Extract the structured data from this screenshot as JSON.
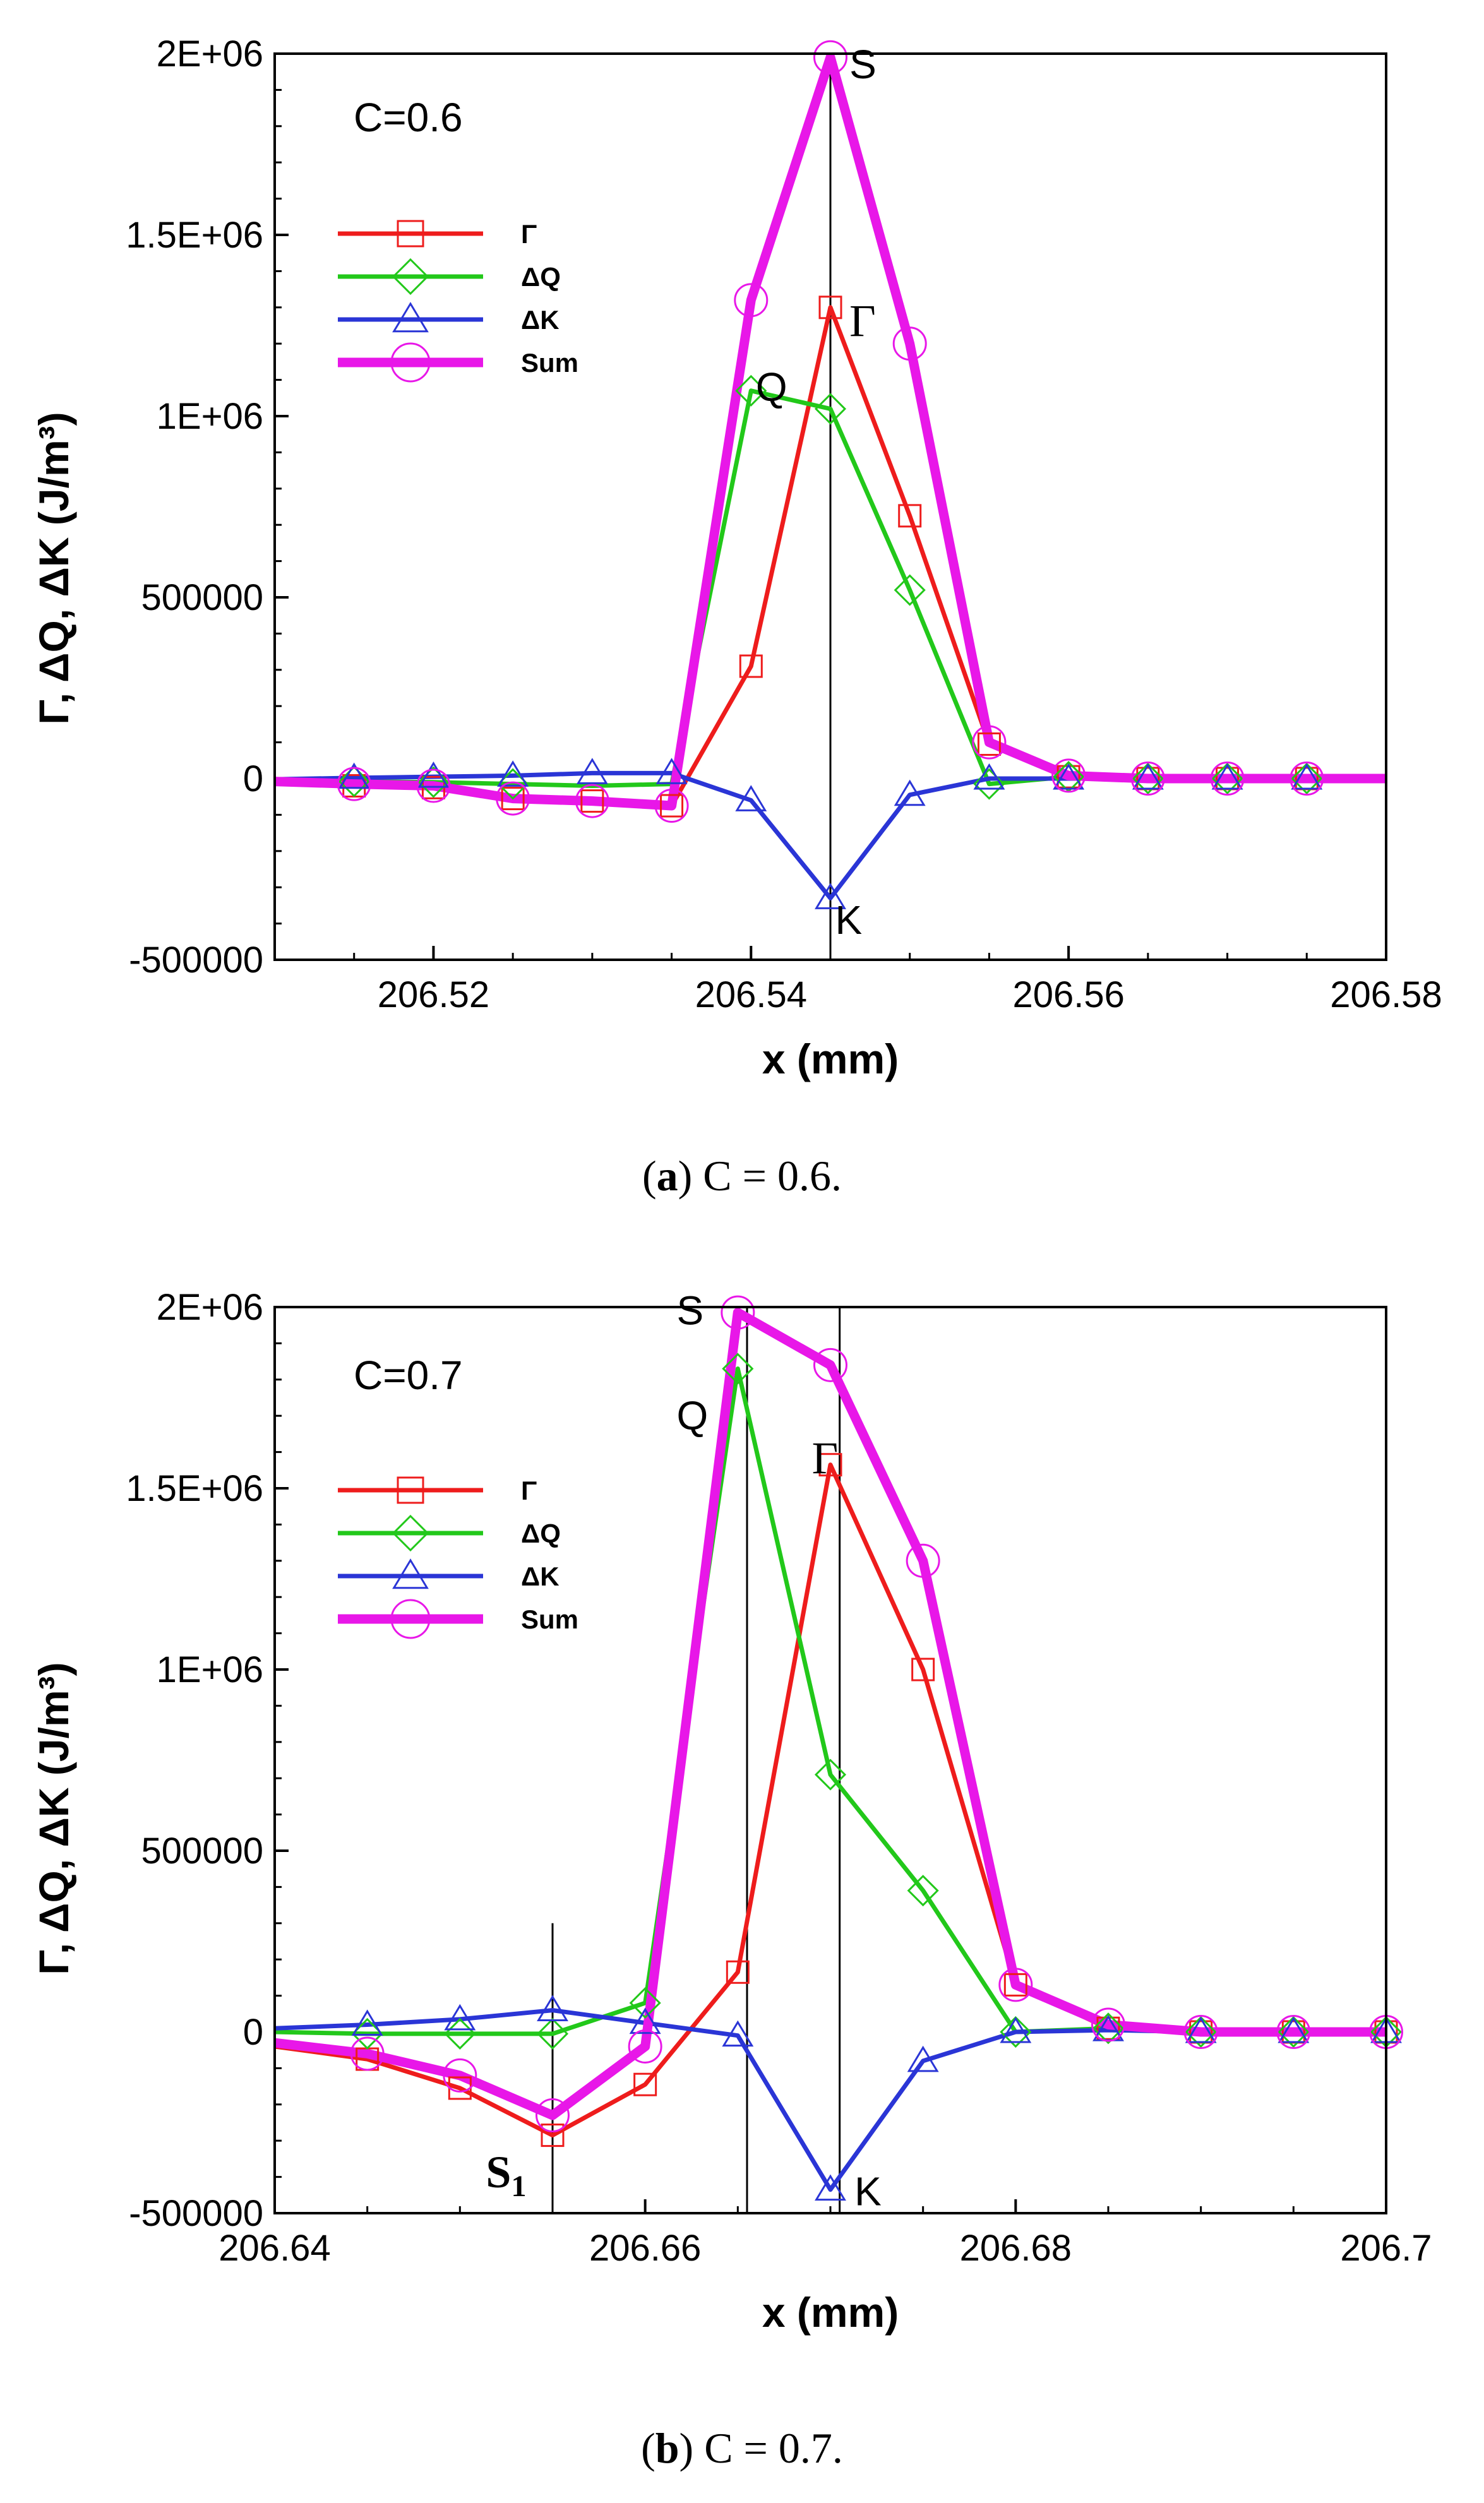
{
  "chart_data": [
    {
      "id": "a",
      "type": "line",
      "annotation": "C=0.6",
      "caption_letter": "a",
      "caption_text": "C = 0.6.",
      "xlabel": "x (mm)",
      "ylabel": "Γ, ΔQ, ΔK (J/m³)",
      "xlim": [
        206.51,
        206.58
      ],
      "ylim": [
        -500000,
        2000000
      ],
      "xticks": [
        206.52,
        206.54,
        206.56,
        206.58
      ],
      "xtick_labels": [
        "206.52",
        "206.54",
        "206.56",
        "206.58"
      ],
      "yticks": [
        -500000,
        0,
        500000,
        1000000,
        1500000,
        2000000
      ],
      "ytick_labels": [
        "-500000",
        "0",
        "500000",
        "1E+06",
        "1.5E+06",
        "2E+06"
      ],
      "vlines": [
        {
          "x": 206.545,
          "y_from": -500000,
          "y_to": 2000000
        }
      ],
      "labels": [
        {
          "text": "S",
          "x": 206.5462,
          "y": 1970000,
          "font": "sans"
        },
        {
          "text": "Γ",
          "x": 206.5462,
          "y": 1260000,
          "font": "serif"
        },
        {
          "text": "Q",
          "x": 206.5403,
          "y": 1080000,
          "font": "sans"
        },
        {
          "text": "K",
          "x": 206.5453,
          "y": -390000,
          "font": "sans"
        }
      ],
      "legend": [
        {
          "name": "Γ",
          "key": "gamma"
        },
        {
          "name": "ΔQ",
          "key": "dQ"
        },
        {
          "name": "ΔK",
          "key": "dK"
        },
        {
          "name": "Sum",
          "key": "sum"
        }
      ],
      "x": [
        206.51,
        206.515,
        206.52,
        206.525,
        206.53,
        206.535,
        206.54,
        206.545,
        206.55,
        206.555,
        206.56,
        206.565,
        206.57,
        206.575,
        206.58
      ],
      "series": [
        {
          "name": "Γ",
          "key": "gamma",
          "color": "#ee1c1c",
          "marker": "square",
          "width": 7,
          "values": [
            -10000,
            -20000,
            -25000,
            -55000,
            -62000,
            -75000,
            310000,
            1300000,
            725000,
            95000,
            5000,
            0,
            0,
            0,
            0
          ],
          "marker_x": [
            206.515,
            206.52,
            206.525,
            206.53,
            206.535,
            206.54,
            206.545,
            206.55,
            206.555,
            206.56,
            206.565,
            206.57,
            206.575
          ]
        },
        {
          "name": "ΔQ",
          "key": "dQ",
          "color": "#22c81a",
          "marker": "diamond",
          "width": 7,
          "values": [
            -5000,
            -8000,
            -10000,
            -15000,
            -20000,
            -15000,
            1070000,
            1020000,
            520000,
            -15000,
            5000,
            0,
            0,
            0,
            0
          ],
          "marker_x": [
            206.515,
            206.52,
            206.525,
            206.54,
            206.545,
            206.55,
            206.555,
            206.56,
            206.565,
            206.57,
            206.575
          ]
        },
        {
          "name": "ΔK",
          "key": "dK",
          "color": "#2a35d6",
          "marker": "triangle",
          "width": 7,
          "values": [
            -2000,
            2000,
            5000,
            8000,
            15000,
            15000,
            -60000,
            -330000,
            -45000,
            0,
            0,
            0,
            0,
            0,
            0
          ],
          "marker_x": [
            206.515,
            206.52,
            206.525,
            206.53,
            206.535,
            206.54,
            206.545,
            206.55,
            206.555,
            206.56,
            206.565,
            206.57,
            206.575
          ]
        },
        {
          "name": "Sum",
          "key": "sum",
          "color": "#e817e8",
          "marker": "circle",
          "width": 15,
          "values": [
            -8000,
            -15000,
            -20000,
            -55000,
            -62000,
            -75000,
            1320000,
            1990000,
            1200000,
            100000,
            8000,
            0,
            0,
            0,
            0
          ],
          "marker_x": [
            206.515,
            206.52,
            206.525,
            206.53,
            206.535,
            206.54,
            206.545,
            206.55,
            206.555,
            206.56,
            206.565,
            206.57,
            206.575
          ]
        }
      ]
    },
    {
      "id": "b",
      "type": "line",
      "annotation": "C=0.7",
      "caption_letter": "b",
      "caption_text": "C = 0.7.",
      "xlabel": "x (mm)",
      "ylabel": "Γ, ΔQ, ΔK (J/m³)",
      "xlim": [
        206.64,
        206.7
      ],
      "ylim": [
        -500000,
        2000000
      ],
      "xticks": [
        206.64,
        206.66,
        206.68,
        206.7
      ],
      "xtick_labels": [
        "206.64",
        "206.66",
        "206.68",
        "206.7"
      ],
      "yticks": [
        -500000,
        0,
        500000,
        1000000,
        1500000,
        2000000
      ],
      "ytick_labels": [
        "-500000",
        "0",
        "500000",
        "1E+06",
        "1.5E+06",
        "2E+06"
      ],
      "vlines": [
        {
          "x": 206.655,
          "y_from": -500000,
          "y_to": 300000
        },
        {
          "x": 206.6655,
          "y_from": -500000,
          "y_to": 2000000
        },
        {
          "x": 206.6705,
          "y_from": -500000,
          "y_to": 2000000
        }
      ],
      "labels": [
        {
          "text": "S",
          "x": 206.6617,
          "y": 1990000,
          "font": "sans"
        },
        {
          "text": "Q",
          "x": 206.6617,
          "y": 1700000,
          "font": "sans"
        },
        {
          "text": "Γ",
          "x": 206.669,
          "y": 1580000,
          "font": "serif"
        },
        {
          "text": "K",
          "x": 206.6713,
          "y": -440000,
          "font": "sans"
        },
        {
          "text": "S",
          "sub": "1",
          "x": 206.6514,
          "y": -390000,
          "font": "serif"
        }
      ],
      "legend": [
        {
          "name": "Γ",
          "key": "gamma"
        },
        {
          "name": "ΔQ",
          "key": "dQ"
        },
        {
          "name": "ΔK",
          "key": "dK"
        },
        {
          "name": "Sum",
          "key": "sum"
        }
      ],
      "x": [
        206.64,
        206.645,
        206.65,
        206.655,
        206.66,
        206.665,
        206.67,
        206.675,
        206.68,
        206.685,
        206.69,
        206.695,
        206.7
      ],
      "series": [
        {
          "name": "Γ",
          "key": "gamma",
          "color": "#ee1c1c",
          "marker": "square",
          "width": 7,
          "values": [
            -40000,
            -75000,
            -155000,
            -285000,
            -145000,
            165000,
            1565000,
            1000000,
            130000,
            10000,
            0,
            0,
            0
          ],
          "marker_x": [
            206.645,
            206.65,
            206.655,
            206.66,
            206.665,
            206.67,
            206.675,
            206.68,
            206.685,
            206.69,
            206.695,
            206.7
          ]
        },
        {
          "name": "ΔQ",
          "key": "dQ",
          "color": "#22c81a",
          "marker": "diamond",
          "width": 7,
          "values": [
            0,
            -5000,
            -5000,
            -5000,
            80000,
            1830000,
            710000,
            390000,
            0,
            10000,
            0,
            0,
            0
          ],
          "marker_x": [
            206.645,
            206.65,
            206.655,
            206.66,
            206.665,
            206.67,
            206.675,
            206.68,
            206.685,
            206.69,
            206.695,
            206.7
          ]
        },
        {
          "name": "ΔK",
          "key": "dK",
          "color": "#2a35d6",
          "marker": "triangle",
          "width": 7,
          "values": [
            10000,
            20000,
            35000,
            60000,
            25000,
            -10000,
            -435000,
            -80000,
            0,
            5000,
            0,
            0,
            0
          ],
          "marker_x": [
            206.645,
            206.65,
            206.655,
            206.66,
            206.665,
            206.67,
            206.675,
            206.68,
            206.685,
            206.69,
            206.695,
            206.7
          ]
        },
        {
          "name": "Sum",
          "key": "sum",
          "color": "#e817e8",
          "marker": "circle",
          "width": 15,
          "values": [
            -30000,
            -60000,
            -120000,
            -230000,
            -40000,
            1985000,
            1840000,
            1300000,
            130000,
            20000,
            0,
            0,
            0
          ],
          "marker_x": [
            206.645,
            206.65,
            206.655,
            206.66,
            206.665,
            206.67,
            206.675,
            206.68,
            206.685,
            206.69,
            206.695,
            206.7
          ]
        }
      ]
    }
  ]
}
